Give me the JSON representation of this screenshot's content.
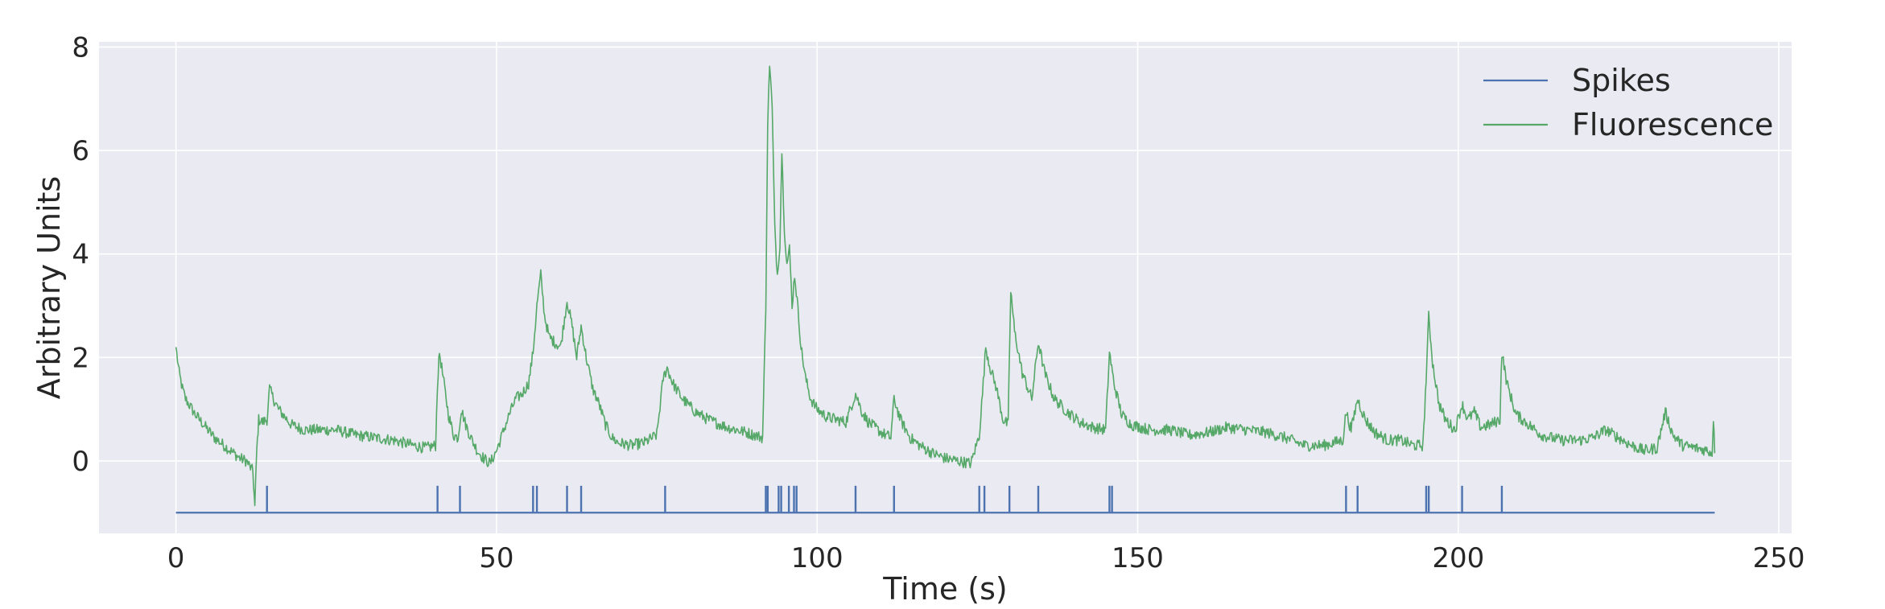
{
  "chart_data": {
    "type": "line",
    "xlabel": "Time (s)",
    "ylabel": "Arbitrary Units",
    "xlim": [
      -12,
      252
    ],
    "ylim": [
      -1.4,
      8.1
    ],
    "xticks": [
      0,
      50,
      100,
      150,
      200,
      250
    ],
    "yticks": [
      0,
      2,
      4,
      6,
      8
    ],
    "grid": true,
    "legend_position": "top-right",
    "series": [
      {
        "name": "Spikes",
        "color": "#4c72b0",
        "baseline": -1.0,
        "spike_height": 0.52,
        "x_end": 240,
        "spike_times": [
          14.2,
          40.8,
          44.3,
          55.7,
          56.3,
          61.0,
          63.2,
          76.3,
          92.0,
          92.3,
          94.0,
          94.4,
          95.6,
          96.4,
          96.8,
          106.0,
          112.0,
          125.3,
          126.1,
          130.0,
          134.5,
          145.6,
          146.0,
          182.5,
          184.3,
          195.0,
          195.4,
          200.6,
          206.8
        ]
      },
      {
        "name": "Fluorescence",
        "color": "#55a868",
        "points": [
          [
            0,
            2.2
          ],
          [
            0.5,
            1.7
          ],
          [
            1,
            1.4
          ],
          [
            1.5,
            1.2
          ],
          [
            2,
            1.1
          ],
          [
            3,
            0.9
          ],
          [
            4,
            0.75
          ],
          [
            5,
            0.6
          ],
          [
            6,
            0.45
          ],
          [
            7,
            0.35
          ],
          [
            8,
            0.25
          ],
          [
            9,
            0.15
          ],
          [
            10,
            0.05
          ],
          [
            11,
            0.0
          ],
          [
            12,
            -0.2
          ],
          [
            12.3,
            -0.9
          ],
          [
            12.6,
            0.2
          ],
          [
            12.9,
            0.8
          ],
          [
            13.5,
            0.75
          ],
          [
            14.2,
            0.8
          ],
          [
            14.6,
            1.4
          ],
          [
            15.2,
            1.2
          ],
          [
            16,
            1.0
          ],
          [
            17,
            0.85
          ],
          [
            18,
            0.7
          ],
          [
            20,
            0.6
          ],
          [
            22,
            0.6
          ],
          [
            25,
            0.6
          ],
          [
            28,
            0.5
          ],
          [
            31,
            0.45
          ],
          [
            34,
            0.4
          ],
          [
            37,
            0.3
          ],
          [
            39,
            0.25
          ],
          [
            40.5,
            0.3
          ],
          [
            40.8,
            1.5
          ],
          [
            41.1,
            2.1
          ],
          [
            41.8,
            1.5
          ],
          [
            42.5,
            0.9
          ],
          [
            43.3,
            0.5
          ],
          [
            44.0,
            0.45
          ],
          [
            44.5,
            1.0
          ],
          [
            45.2,
            0.7
          ],
          [
            46,
            0.45
          ],
          [
            47,
            0.2
          ],
          [
            48,
            0.05
          ],
          [
            49,
            -0.05
          ],
          [
            50,
            0.2
          ],
          [
            51,
            0.55
          ],
          [
            52,
            0.9
          ],
          [
            53,
            1.2
          ],
          [
            54,
            1.3
          ],
          [
            55,
            1.5
          ],
          [
            55.7,
            2.1
          ],
          [
            56.3,
            3.0
          ],
          [
            56.9,
            3.6
          ],
          [
            57.5,
            2.8
          ],
          [
            58.2,
            2.4
          ],
          [
            59,
            2.3
          ],
          [
            60,
            2.2
          ],
          [
            61.0,
            3.1
          ],
          [
            61.8,
            2.6
          ],
          [
            62.5,
            2.0
          ],
          [
            63.2,
            2.6
          ],
          [
            64,
            2.0
          ],
          [
            65,
            1.4
          ],
          [
            66,
            1.1
          ],
          [
            67,
            0.7
          ],
          [
            68,
            0.45
          ],
          [
            69,
            0.35
          ],
          [
            71,
            0.3
          ],
          [
            73,
            0.35
          ],
          [
            75,
            0.5
          ],
          [
            76.0,
            1.6
          ],
          [
            76.6,
            1.8
          ],
          [
            77.5,
            1.5
          ],
          [
            79,
            1.2
          ],
          [
            81,
            0.95
          ],
          [
            83,
            0.8
          ],
          [
            86,
            0.65
          ],
          [
            89,
            0.55
          ],
          [
            91.5,
            0.45
          ],
          [
            92.0,
            3.0
          ],
          [
            92.3,
            6.5
          ],
          [
            92.6,
            7.7
          ],
          [
            93.0,
            6.8
          ],
          [
            93.4,
            4.5
          ],
          [
            93.8,
            3.6
          ],
          [
            94.2,
            4.2
          ],
          [
            94.5,
            6.0
          ],
          [
            94.9,
            4.5
          ],
          [
            95.3,
            3.8
          ],
          [
            95.7,
            4.1
          ],
          [
            96.1,
            3.0
          ],
          [
            96.5,
            3.6
          ],
          [
            96.9,
            3.1
          ],
          [
            97.5,
            2.2
          ],
          [
            98.2,
            1.6
          ],
          [
            99,
            1.2
          ],
          [
            100,
            1.0
          ],
          [
            101.5,
            0.85
          ],
          [
            103,
            0.8
          ],
          [
            104.5,
            0.75
          ],
          [
            106.0,
            1.3
          ],
          [
            107,
            0.95
          ],
          [
            108,
            0.75
          ],
          [
            110,
            0.55
          ],
          [
            111.5,
            0.45
          ],
          [
            112.0,
            1.2
          ],
          [
            113,
            0.8
          ],
          [
            114.5,
            0.45
          ],
          [
            116,
            0.3
          ],
          [
            118,
            0.15
          ],
          [
            120,
            0.05
          ],
          [
            122,
            0.0
          ],
          [
            124,
            -0.05
          ],
          [
            125.3,
            0.5
          ],
          [
            125.8,
            1.3
          ],
          [
            126.3,
            2.2
          ],
          [
            127,
            1.8
          ],
          [
            128,
            1.4
          ],
          [
            129,
            0.8
          ],
          [
            129.8,
            0.7
          ],
          [
            130.2,
            3.3
          ],
          [
            130.8,
            2.5
          ],
          [
            132,
            1.7
          ],
          [
            133.5,
            1.2
          ],
          [
            134.5,
            2.3
          ],
          [
            135.5,
            1.7
          ],
          [
            137,
            1.2
          ],
          [
            139,
            0.95
          ],
          [
            141,
            0.75
          ],
          [
            143,
            0.65
          ],
          [
            145.0,
            0.6
          ],
          [
            145.6,
            2.1
          ],
          [
            146.3,
            1.5
          ],
          [
            147.5,
            0.9
          ],
          [
            149,
            0.7
          ],
          [
            152,
            0.6
          ],
          [
            155,
            0.6
          ],
          [
            158,
            0.5
          ],
          [
            161,
            0.55
          ],
          [
            164,
            0.65
          ],
          [
            167,
            0.6
          ],
          [
            170,
            0.55
          ],
          [
            173,
            0.45
          ],
          [
            176,
            0.3
          ],
          [
            179,
            0.3
          ],
          [
            182.0,
            0.4
          ],
          [
            182.5,
            0.95
          ],
          [
            183.3,
            0.6
          ],
          [
            184.3,
            1.2
          ],
          [
            185.5,
            0.8
          ],
          [
            187,
            0.55
          ],
          [
            189,
            0.4
          ],
          [
            191,
            0.4
          ],
          [
            193,
            0.3
          ],
          [
            194.5,
            0.3
          ],
          [
            195.0,
            1.6
          ],
          [
            195.4,
            2.8
          ],
          [
            196,
            1.9
          ],
          [
            197,
            1.1
          ],
          [
            198,
            0.8
          ],
          [
            199.5,
            0.6
          ],
          [
            200.6,
            1.1
          ],
          [
            201.5,
            0.8
          ],
          [
            202.5,
            0.95
          ],
          [
            203.5,
            0.65
          ],
          [
            205,
            0.7
          ],
          [
            206.5,
            0.8
          ],
          [
            206.8,
            2.1
          ],
          [
            207.6,
            1.5
          ],
          [
            209,
            0.9
          ],
          [
            211,
            0.7
          ],
          [
            213,
            0.5
          ],
          [
            216,
            0.4
          ],
          [
            219,
            0.4
          ],
          [
            221,
            0.45
          ],
          [
            223,
            0.6
          ],
          [
            225,
            0.45
          ],
          [
            227,
            0.3
          ],
          [
            229,
            0.2
          ],
          [
            231,
            0.25
          ],
          [
            232.3,
            0.95
          ],
          [
            233.5,
            0.5
          ],
          [
            235,
            0.3
          ],
          [
            237,
            0.25
          ],
          [
            239,
            0.2
          ],
          [
            239.6,
            0.15
          ],
          [
            239.8,
            0.85
          ],
          [
            240,
            0.15
          ]
        ]
      }
    ]
  }
}
